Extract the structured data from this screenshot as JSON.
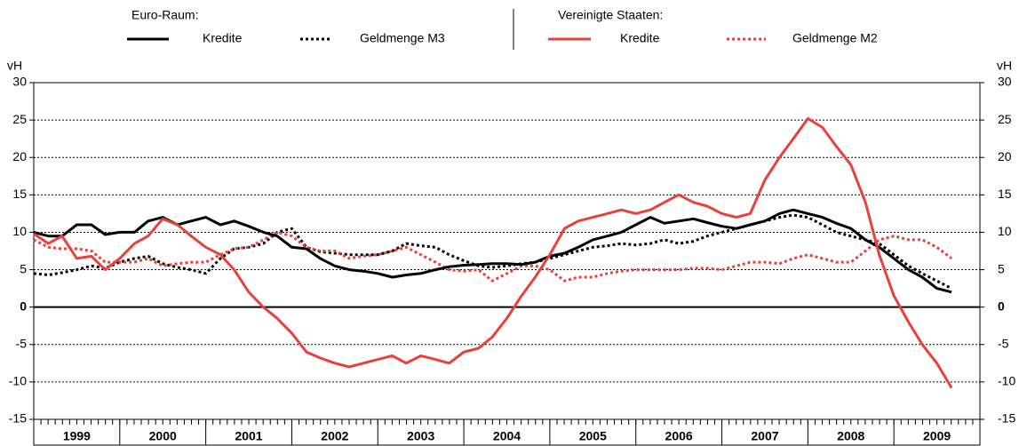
{
  "chart_data": {
    "type": "line",
    "ylabel": "vH",
    "legend_groups": [
      "Euro-Raum:",
      "Vereinigte Staaten:"
    ],
    "year_labels": [
      "1999",
      "2000",
      "2001",
      "2002",
      "2003",
      "2004",
      "2005",
      "2006",
      "2007",
      "2008",
      "2009"
    ],
    "xlim": [
      1999,
      2010
    ],
    "xticks": [
      1999,
      2000,
      2001,
      2002,
      2003,
      2004,
      2005,
      2006,
      2007,
      2008,
      2009,
      2010
    ],
    "ylim": [
      -15,
      30
    ],
    "yticks": [
      -15,
      -10,
      -5,
      0,
      5,
      10,
      15,
      20,
      25,
      30
    ],
    "grid": true,
    "x": [
      1999,
      1999.17,
      1999.33,
      1999.5,
      1999.67,
      1999.83,
      2000,
      2000.17,
      2000.33,
      2000.5,
      2000.67,
      2000.83,
      2001,
      2001.17,
      2001.33,
      2001.5,
      2001.67,
      2001.83,
      2002,
      2002.17,
      2002.33,
      2002.5,
      2002.67,
      2002.83,
      2003,
      2003.17,
      2003.33,
      2003.5,
      2003.67,
      2003.83,
      2004,
      2004.17,
      2004.33,
      2004.5,
      2004.67,
      2004.83,
      2005,
      2005.17,
      2005.33,
      2005.5,
      2005.67,
      2005.83,
      2006,
      2006.17,
      2006.33,
      2006.5,
      2006.67,
      2006.83,
      2007,
      2007.17,
      2007.33,
      2007.5,
      2007.67,
      2007.83,
      2008,
      2008.17,
      2008.33,
      2008.5,
      2008.67,
      2008.83,
      2009,
      2009.17,
      2009.33,
      2009.5,
      2009.67
    ],
    "series": [
      {
        "name": "Kredite",
        "color": "#000000",
        "dashed": false,
        "values": [
          10,
          9.5,
          9.5,
          11,
          11,
          9.7,
          10,
          10,
          11.5,
          12,
          11,
          11.5,
          12,
          11,
          11.5,
          10.8,
          10,
          9.5,
          8,
          7.8,
          6.5,
          5.5,
          5,
          4.8,
          4.5,
          4,
          4.3,
          4.5,
          5,
          5.4,
          5.6,
          5.7,
          5.8,
          5.8,
          5.7,
          6,
          6.8,
          7.2,
          8,
          9,
          9.5,
          10,
          11,
          12,
          11.2,
          11.5,
          11.8,
          11.3,
          10.8,
          10.5,
          11,
          11.5,
          12.5,
          13,
          12.5,
          12,
          11.2,
          10.5,
          9,
          8,
          6.5,
          5,
          4,
          2.5,
          2
        ]
      },
      {
        "name": "Geldmenge M3",
        "color": "#000000",
        "dashed": true,
        "values": [
          4.5,
          4.3,
          4.6,
          5,
          5.5,
          5.2,
          6,
          6.5,
          6.8,
          5.8,
          5.3,
          5,
          4.5,
          6.5,
          7.8,
          8,
          8.5,
          10,
          10.5,
          8,
          7.4,
          7.2,
          7,
          7,
          7,
          7.5,
          8.5,
          8.2,
          8,
          7,
          6.2,
          5.5,
          5.3,
          5.5,
          5.8,
          6,
          6.5,
          7,
          7.5,
          8,
          8.2,
          8.5,
          8.3,
          8.5,
          9,
          8.5,
          8.8,
          9.5,
          10,
          10.5,
          11,
          11.5,
          12,
          12.3,
          12,
          11,
          10,
          9.5,
          9,
          8.5,
          7,
          5.5,
          4.5,
          3.5,
          2.5
        ]
      },
      {
        "name": "Kredite",
        "color": "#e8413c",
        "dashed": false,
        "values": [
          9.8,
          8.5,
          9.5,
          6.5,
          6.8,
          5,
          6.5,
          8.5,
          9.5,
          11.8,
          11,
          9.5,
          8,
          7,
          5,
          2,
          0,
          -1.5,
          -3.5,
          -6,
          -6.8,
          -7.5,
          -8,
          -7.5,
          -7,
          -6.5,
          -7.5,
          -6.5,
          -7,
          -7.5,
          -6,
          -5.5,
          -4,
          -1.5,
          1.5,
          4,
          7,
          10.5,
          11.5,
          12,
          12.5,
          13,
          12.5,
          13,
          14,
          15,
          14,
          13.5,
          12.5,
          12,
          12.5,
          17,
          20,
          22.5,
          25.2,
          24,
          21.5,
          19,
          14,
          7,
          1.5,
          -2,
          -5,
          -7.5,
          -10.8
        ]
      },
      {
        "name": "Geldmenge M2",
        "color": "#e8413c",
        "dashed": true,
        "values": [
          9,
          8,
          7.8,
          7.8,
          7.5,
          6,
          6,
          6,
          6.5,
          5.5,
          5.8,
          6,
          6,
          7,
          7.8,
          8,
          9,
          10,
          9.5,
          8,
          7.5,
          7.5,
          6.5,
          6.8,
          7,
          7.5,
          8,
          7,
          6,
          5,
          4.8,
          5,
          3.5,
          4.5,
          5.5,
          5.5,
          5,
          3.5,
          4,
          4,
          4.5,
          4.8,
          5,
          5,
          5,
          5,
          5.2,
          5.2,
          5,
          5.5,
          6,
          6,
          5.8,
          6.5,
          7,
          6.5,
          6,
          6,
          7.5,
          9,
          9.5,
          9,
          9,
          8,
          6.5
        ]
      }
    ]
  }
}
